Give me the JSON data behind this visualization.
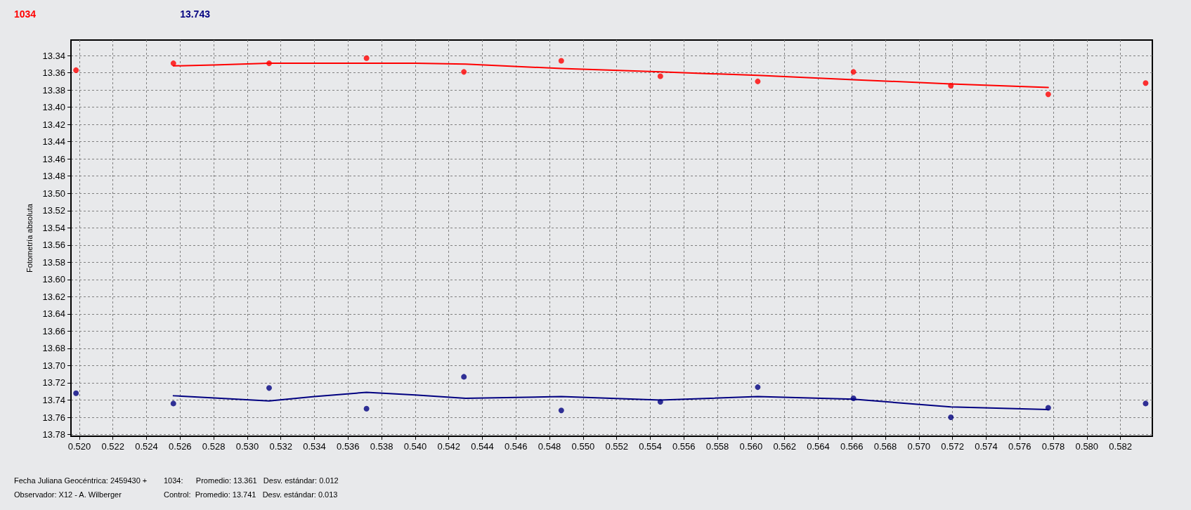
{
  "chart_data": {
    "type": "scatter",
    "ylabel": "Fotometría absoluta",
    "annotations": [
      "Fecha Juliana Geocéntrica: 2459430 +",
      "Observador: X12 - A. Wilberger",
      "1034:      Promedio: 13.361   Desv. estándar: 0.012",
      "Control:  Promedio: 13.741   Desv. estándar: 0.013"
    ],
    "series": [
      {
        "name": "1034",
        "color": "#ff0000",
        "marker": "circle",
        "x": [
          0.5198,
          0.5256,
          0.5313,
          0.5371,
          0.5429,
          0.5487,
          0.5546,
          0.5604,
          0.5661,
          0.5719,
          0.5777,
          0.5835
        ],
        "values": [
          13.357,
          13.349,
          13.349,
          13.343,
          13.359,
          13.346,
          13.364,
          13.37,
          13.359,
          13.375,
          13.385,
          13.372
        ]
      },
      {
        "color": "#ff0000",
        "type": "line",
        "marker": "none",
        "line_style": "solid",
        "x": [
          0.5256,
          0.528,
          0.5313,
          0.535,
          0.54,
          0.543,
          0.5487,
          0.5546,
          0.5604,
          0.5661,
          0.5719,
          0.5777
        ],
        "values": [
          13.352,
          13.351,
          13.349,
          13.349,
          13.349,
          13.35,
          13.355,
          13.359,
          13.363,
          13.368,
          13.373,
          13.377
        ]
      },
      {
        "name": "13.743",
        "color": "#000080",
        "marker": "circle",
        "x": [
          0.5198,
          0.5256,
          0.5313,
          0.5371,
          0.5429,
          0.5487,
          0.5546,
          0.5604,
          0.5661,
          0.5719,
          0.5777,
          0.5835
        ],
        "values": [
          13.732,
          13.744,
          13.726,
          13.75,
          13.713,
          13.752,
          13.742,
          13.725,
          13.738,
          13.76,
          13.749,
          13.744
        ]
      },
      {
        "color": "#000080",
        "type": "line",
        "marker": "none",
        "line_style": "solid",
        "x": [
          0.5256,
          0.5313,
          0.534,
          0.5371,
          0.54,
          0.543,
          0.5487,
          0.5546,
          0.5604,
          0.5661,
          0.5719,
          0.5777
        ],
        "values": [
          13.735,
          13.741,
          13.736,
          13.731,
          13.734,
          13.738,
          13.736,
          13.74,
          13.736,
          13.739,
          13.748,
          13.751
        ]
      }
    ],
    "xlim": [
      0.5195,
      0.5839
    ],
    "xticks": [
      {
        "value": 0.52,
        "label": "0.520"
      },
      0.522,
      0.524,
      0.526,
      0.528,
      {
        "value": 0.53,
        "label": "0.530"
      },
      0.532,
      0.534,
      0.536,
      0.538,
      {
        "value": 0.54,
        "label": "0.540"
      },
      0.542,
      0.544,
      0.546,
      0.548,
      {
        "value": 0.55,
        "label": "0.550"
      },
      0.552,
      0.554,
      0.556,
      0.558,
      {
        "value": 0.56,
        "label": "0.560"
      },
      0.562,
      0.564,
      0.566,
      0.568,
      {
        "value": 0.57,
        "label": "0.570"
      },
      0.572,
      0.574,
      0.576,
      0.578,
      {
        "value": 0.58,
        "label": "0.580"
      },
      0.582
    ],
    "ylim": [
      13.782,
      13.322
    ],
    "yticks": [
      13.34,
      13.36,
      13.38,
      {
        "value": 13.4,
        "label": "13.40"
      },
      13.42,
      13.44,
      13.46,
      13.48,
      {
        "value": 13.5,
        "label": "13.50"
      },
      13.52,
      13.54,
      13.56,
      13.58,
      {
        "value": 13.6,
        "label": "13.60"
      },
      13.62,
      13.64,
      13.66,
      13.68,
      {
        "value": 13.7,
        "label": "13.70"
      },
      13.72,
      13.74,
      13.76,
      13.78
    ],
    "grid": true,
    "legend": "top left"
  }
}
